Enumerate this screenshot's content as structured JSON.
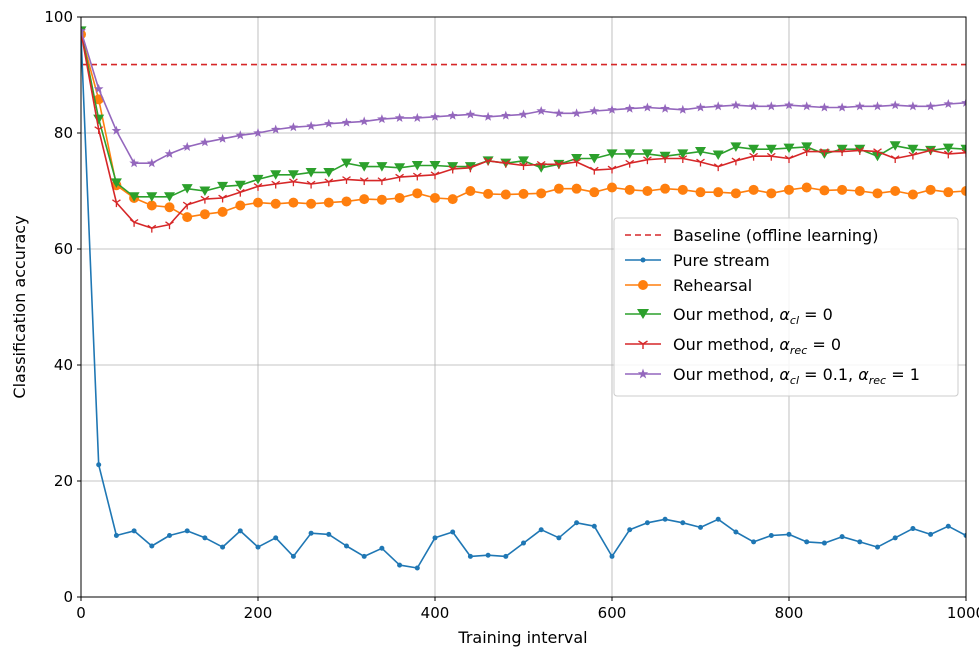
{
  "chart_data": {
    "type": "line",
    "xlabel": "Training interval",
    "ylabel": "Classification accuracy",
    "xlim": [
      0,
      1000
    ],
    "ylim": [
      0,
      100
    ],
    "xticks": [
      0,
      200,
      400,
      600,
      800,
      1000
    ],
    "yticks": [
      0,
      20,
      40,
      60,
      80,
      100
    ],
    "x_tick_labels": [
      "0",
      "200",
      "400",
      "600",
      "800",
      "1000"
    ],
    "y_tick_labels": [
      "0",
      "20",
      "40",
      "60",
      "80",
      "100"
    ],
    "grid": true,
    "legend_position": "center-right",
    "x": [
      0,
      20,
      40,
      60,
      80,
      100,
      120,
      140,
      160,
      180,
      200,
      220,
      240,
      260,
      280,
      300,
      320,
      340,
      360,
      380,
      400,
      420,
      440,
      460,
      480,
      500,
      520,
      540,
      560,
      580,
      600,
      620,
      640,
      660,
      680,
      700,
      720,
      740,
      760,
      780,
      800,
      820,
      840,
      860,
      880,
      900,
      920,
      940,
      960,
      980,
      1000
    ],
    "baseline": {
      "name": "Baseline (offline learning)",
      "value": 91.8,
      "color": "#d62728",
      "style": "dashed"
    },
    "series": [
      {
        "name": "Pure stream",
        "color": "#1f77b4",
        "marker": "dot",
        "values": [
          97.0,
          22.8,
          10.6,
          11.4,
          8.8,
          10.6,
          11.4,
          10.2,
          8.6,
          11.4,
          8.6,
          10.2,
          7.0,
          11.0,
          10.8,
          8.8,
          7.0,
          8.4,
          5.5,
          5.0,
          10.2,
          11.2,
          7.0,
          7.2,
          7.0,
          9.3,
          11.6,
          10.2,
          12.8,
          12.2,
          7.0,
          11.6,
          12.8,
          13.4,
          12.8,
          12.0,
          13.4,
          11.2,
          9.5,
          10.6,
          10.8,
          9.5,
          9.3,
          10.4,
          9.5,
          8.6,
          10.2,
          11.8,
          10.8,
          12.2,
          10.6
        ]
      },
      {
        "name": "Rehearsal",
        "color": "#ff7f0e",
        "marker": "circle",
        "values": [
          97.0,
          85.8,
          71.0,
          68.8,
          67.5,
          67.2,
          65.5,
          66.0,
          66.4,
          67.5,
          68.0,
          67.8,
          68.0,
          67.8,
          68.0,
          68.2,
          68.6,
          68.5,
          68.8,
          69.6,
          68.8,
          68.6,
          70.0,
          69.5,
          69.4,
          69.5,
          69.6,
          70.4,
          70.4,
          69.8,
          70.6,
          70.2,
          70.0,
          70.4,
          70.2,
          69.8,
          69.8,
          69.6,
          70.2,
          69.6,
          70.2,
          70.6,
          70.1,
          70.2,
          70.0,
          69.6,
          70.0,
          69.4,
          70.2,
          69.8,
          70.0
        ]
      },
      {
        "name": "Our method, αcl = 0",
        "color": "#2ca02c",
        "marker": "triangle",
        "values": [
          97.6,
          82.4,
          71.4,
          69.0,
          69.0,
          69.0,
          70.4,
          70.0,
          70.8,
          71.0,
          72.0,
          72.8,
          72.8,
          73.2,
          73.2,
          74.8,
          74.2,
          74.2,
          74.0,
          74.4,
          74.4,
          74.2,
          74.2,
          75.2,
          74.8,
          75.2,
          74.0,
          74.6,
          75.6,
          75.6,
          76.4,
          76.4,
          76.4,
          76.0,
          76.4,
          76.8,
          76.2,
          77.6,
          77.2,
          77.2,
          77.4,
          77.6,
          76.4,
          77.2,
          77.2,
          76.0,
          77.8,
          77.2,
          77.0,
          77.4,
          77.2
        ]
      },
      {
        "name": "Our method, αrec = 0",
        "color": "#d62728",
        "marker": "tri",
        "values": [
          97.4,
          80.6,
          68.0,
          64.6,
          63.6,
          64.2,
          67.6,
          68.6,
          68.8,
          69.8,
          70.8,
          71.2,
          71.6,
          71.2,
          71.6,
          72.0,
          71.8,
          71.8,
          72.4,
          72.6,
          72.8,
          73.8,
          74.0,
          75.2,
          74.8,
          74.4,
          74.6,
          74.6,
          75.0,
          73.6,
          73.8,
          74.8,
          75.4,
          75.6,
          75.6,
          75.0,
          74.2,
          75.2,
          76.0,
          76.0,
          75.6,
          76.8,
          76.8,
          76.8,
          77.0,
          76.8,
          75.6,
          76.2,
          77.0,
          76.4,
          76.6
        ]
      },
      {
        "name": "Our method, αcl = 0.1, αrec = 1",
        "color": "#9467bd",
        "marker": "star",
        "values": [
          97.6,
          87.6,
          80.4,
          74.8,
          74.8,
          76.4,
          77.6,
          78.4,
          79.0,
          79.6,
          80.0,
          80.6,
          81.0,
          81.2,
          81.6,
          81.8,
          82.0,
          82.4,
          82.6,
          82.6,
          82.8,
          83.0,
          83.2,
          82.8,
          83.0,
          83.2,
          83.8,
          83.4,
          83.4,
          83.8,
          84.0,
          84.2,
          84.4,
          84.2,
          84.0,
          84.4,
          84.6,
          84.8,
          84.6,
          84.6,
          84.8,
          84.6,
          84.4,
          84.4,
          84.6,
          84.6,
          84.8,
          84.6,
          84.6,
          85.0,
          85.2
        ]
      }
    ]
  },
  "legend": {
    "baseline": "Baseline (offline learning)",
    "pure": "Pure stream",
    "rehearsal": "Rehearsal",
    "prefix": "Our method, ",
    "alpha": "α",
    "cl_sub": "cl",
    "rec_sub": "rec",
    "eq0": " = 0",
    "eq01": " = 0.1, ",
    "eq1": " = 1"
  }
}
